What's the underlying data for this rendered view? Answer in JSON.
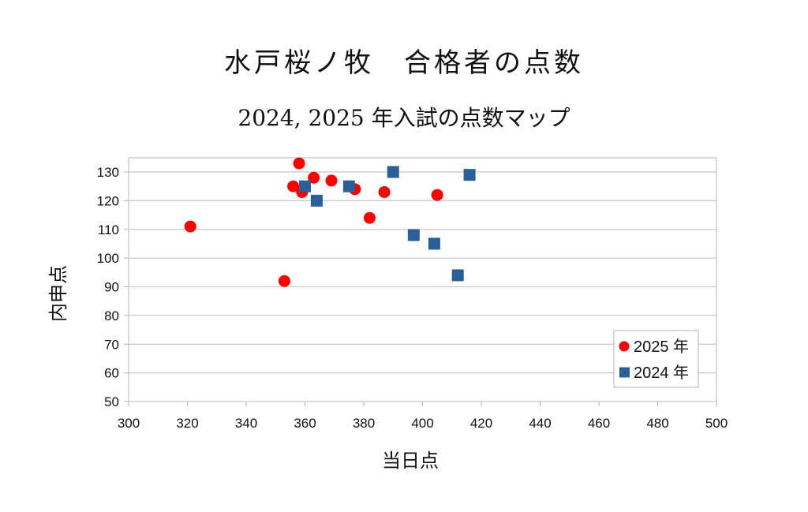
{
  "chart_data": {
    "type": "scatter",
    "title": "水戸桜ノ牧　合格者の点数",
    "subtitle": "2024, 2025 年入試の点数マップ",
    "xlabel": "当日点",
    "ylabel": "内申点",
    "xlim": [
      300,
      500
    ],
    "ylim": [
      50,
      130
    ],
    "xticks": [
      300,
      320,
      340,
      360,
      380,
      400,
      420,
      440,
      460,
      480,
      500
    ],
    "yticks": [
      50,
      60,
      70,
      80,
      90,
      100,
      110,
      120,
      130
    ],
    "grid": "horizontal",
    "legend_position": "bottom-right",
    "series": [
      {
        "name": "2025 年",
        "marker": "circle",
        "color": "#ff0000",
        "points": [
          [
            321,
            111
          ],
          [
            358,
            133
          ],
          [
            356,
            125
          ],
          [
            359,
            123
          ],
          [
            363,
            128
          ],
          [
            369,
            127
          ],
          [
            377,
            124
          ],
          [
            382,
            114
          ],
          [
            387,
            123
          ],
          [
            405,
            122
          ],
          [
            353,
            92
          ]
        ]
      },
      {
        "name": "2024 年",
        "marker": "square",
        "color": "#2a6099",
        "points": [
          [
            360,
            125
          ],
          [
            364,
            120
          ],
          [
            375,
            125
          ],
          [
            390,
            130
          ],
          [
            397,
            108
          ],
          [
            404,
            105
          ],
          [
            412,
            94
          ],
          [
            416,
            129
          ]
        ]
      }
    ]
  }
}
